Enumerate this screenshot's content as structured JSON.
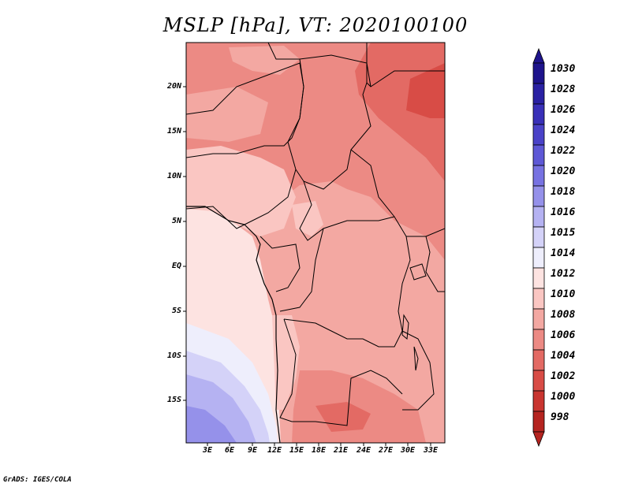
{
  "title": "MSLP [hPa], VT: 2020100100",
  "footer": "GrADS: IGES/COLA",
  "axes": {
    "y_labels": [
      "20N",
      "15N",
      "10N",
      "5N",
      "EQ",
      "5S",
      "10S",
      "15S"
    ],
    "x_labels": [
      "3E",
      "6E",
      "9E",
      "12E",
      "15E",
      "18E",
      "21E",
      "24E",
      "27E",
      "30E",
      "33E"
    ]
  },
  "colorbar": {
    "labels": [
      "1030",
      "1028",
      "1026",
      "1024",
      "1022",
      "1020",
      "1018",
      "1016",
      "1015",
      "1014",
      "1012",
      "1010",
      "1008",
      "1006",
      "1004",
      "1002",
      "1000",
      "998"
    ],
    "colors": [
      "#1e148c",
      "#2a21a3",
      "#3930b8",
      "#4a42c8",
      "#5e58d6",
      "#7772e2",
      "#9591ea",
      "#b5b2f2",
      "#d4d2f8",
      "#eeeefc",
      "#fde3e1",
      "#fac6c2",
      "#f3a8a2",
      "#ec8a84",
      "#e36a64",
      "#d84c46",
      "#c93530",
      "#b52420"
    ]
  },
  "legend_colors": {
    "ocean_high": "#fde8e6",
    "land_1010": "#f3a8a2",
    "land_1008": "#ec8a84",
    "land_1006": "#e36a64",
    "land_1012": "#fac6c2",
    "sea_1014": "#eeeefc",
    "sea_1015": "#d4d2f8",
    "sea_1016": "#b5b2f2",
    "sea_1018": "#9591ea"
  }
}
